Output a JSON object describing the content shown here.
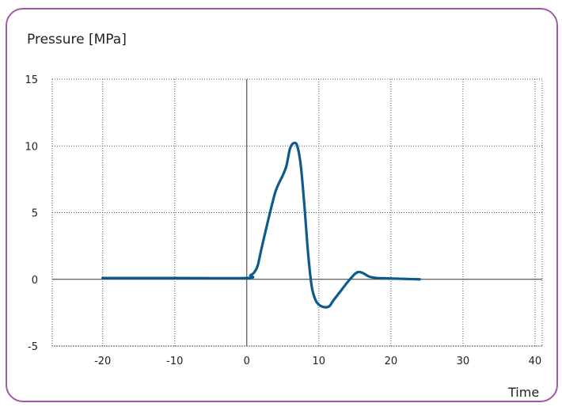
{
  "chart_data": {
    "type": "line",
    "title": "",
    "xlabel": "Time",
    "ylabel": "Pressure [MPa]",
    "xlim": [
      -27,
      41
    ],
    "ylim": [
      -5,
      15
    ],
    "xticks": [
      -20,
      -10,
      0,
      10,
      20,
      30,
      40
    ],
    "yticks": [
      -5,
      0,
      5,
      10,
      15
    ],
    "grid": true,
    "line_color": "#0d5a8c",
    "series": [
      {
        "x": [
          -20,
          -10,
          0,
          0.5,
          1,
          1.5,
          2,
          3,
          4,
          5,
          5.5,
          6,
          6.5,
          7,
          7.5,
          8,
          8.5,
          9,
          9.5,
          10,
          10.5,
          11,
          11.5,
          12,
          13,
          14,
          15,
          15.5,
          16,
          16.5,
          17,
          18,
          19,
          20,
          22,
          24
        ],
        "y": [
          0.1,
          0.1,
          0.1,
          0.3,
          0.5,
          1.0,
          2.2,
          4.5,
          6.6,
          7.8,
          8.5,
          9.8,
          10.2,
          10.0,
          8.5,
          5.5,
          2.0,
          -0.5,
          -1.5,
          -1.9,
          -2.05,
          -2.1,
          -2.0,
          -1.6,
          -0.9,
          -0.2,
          0.4,
          0.55,
          0.5,
          0.35,
          0.2,
          0.1,
          0.08,
          0.06,
          0.03,
          0.0
        ]
      }
    ]
  }
}
